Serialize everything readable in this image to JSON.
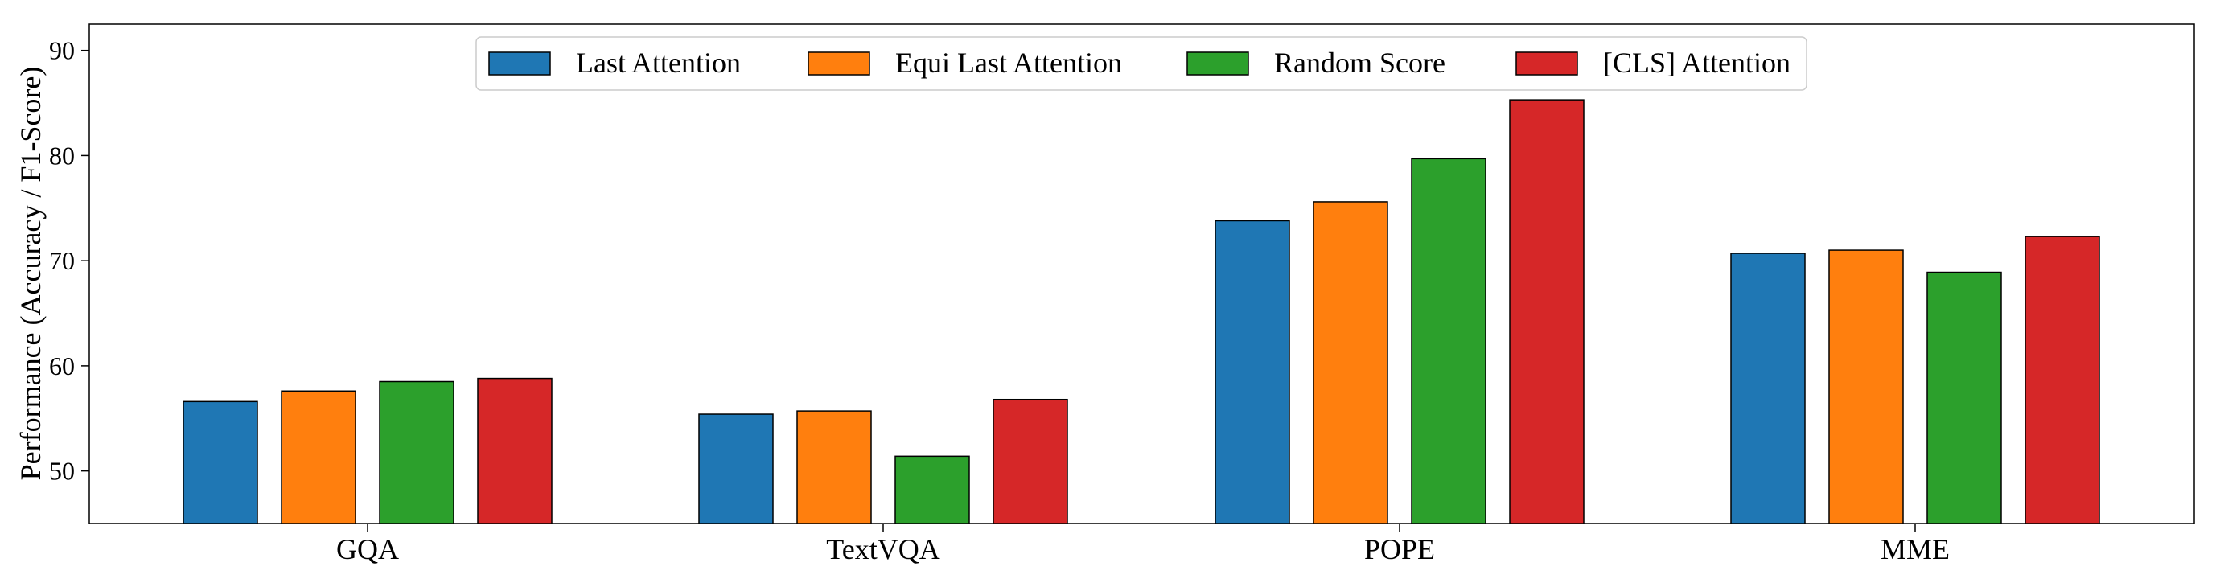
{
  "chart_data": {
    "type": "bar",
    "title": "",
    "xlabel": "",
    "ylabel": "Performance (Accuracy / F1-Score)",
    "categories": [
      "GQA",
      "TextVQA",
      "POPE",
      "MME"
    ],
    "series": [
      {
        "name": "Last Attention",
        "color": "#1f77b4",
        "values": [
          56.6,
          55.4,
          73.8,
          70.7
        ]
      },
      {
        "name": "Equi Last Attention",
        "color": "#ff7f0e",
        "values": [
          57.6,
          55.7,
          75.6,
          71.0
        ]
      },
      {
        "name": "Random Score",
        "color": "#2ca02c",
        "values": [
          58.5,
          51.4,
          79.7,
          68.9
        ]
      },
      {
        "name": "[CLS] Attention",
        "color": "#d62728",
        "values": [
          58.8,
          56.8,
          85.3,
          72.3
        ]
      }
    ],
    "ylim": [
      45,
      92.5
    ],
    "yticks": [
      "50",
      "60",
      "70",
      "80",
      "90"
    ],
    "grid": false,
    "legend_position": "top-center"
  }
}
